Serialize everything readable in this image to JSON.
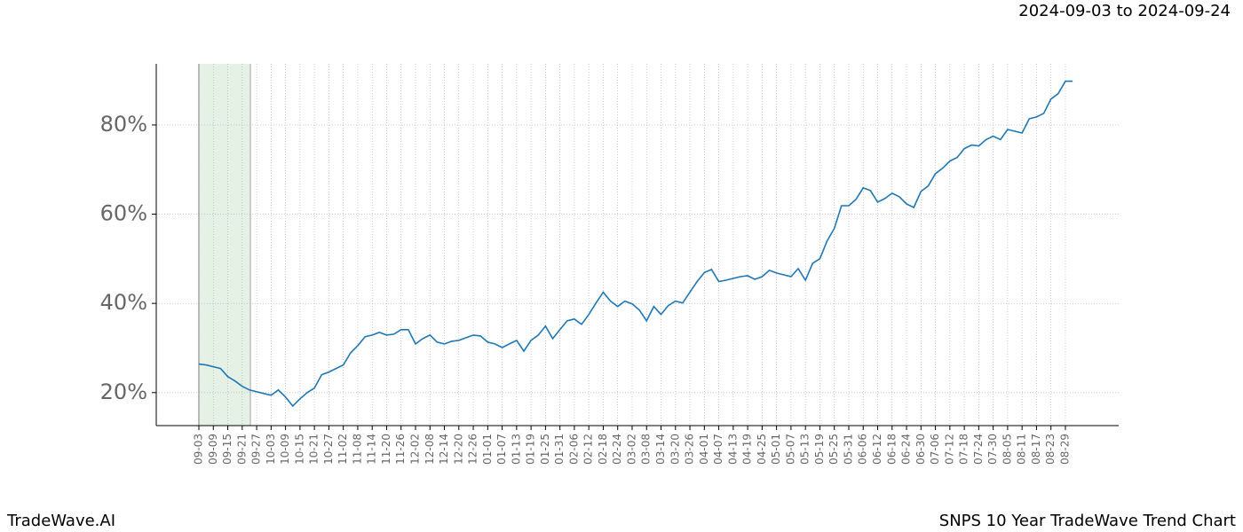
{
  "header": {
    "date_range": "2024-09-03 to 2024-09-24"
  },
  "footer": {
    "brand": "TradeWave.AI",
    "chart_title": "SNPS 10 Year TradeWave Trend Chart"
  },
  "chart_data": {
    "type": "line",
    "categories": [
      "09-03",
      null,
      "09-09",
      null,
      "09-15",
      null,
      "09-21",
      null,
      "09-27",
      null,
      "10-03",
      null,
      "10-09",
      null,
      "10-15",
      null,
      "10-21",
      null,
      "10-27",
      null,
      "11-02",
      null,
      "11-08",
      null,
      "11-14",
      null,
      "11-20",
      null,
      "11-26",
      null,
      "12-02",
      null,
      "12-08",
      null,
      "12-14",
      null,
      "12-20",
      null,
      "12-26",
      null,
      "01-01",
      null,
      "01-07",
      null,
      "01-13",
      null,
      "01-19",
      null,
      "01-25",
      null,
      "01-31",
      null,
      "02-06",
      null,
      "02-12",
      null,
      "02-18",
      null,
      "02-24",
      null,
      "03-02",
      null,
      "03-08",
      null,
      "03-14",
      null,
      "03-20",
      null,
      "03-26",
      null,
      "04-01",
      null,
      "04-07",
      null,
      "04-13",
      null,
      "04-19",
      null,
      "04-25",
      null,
      "05-01",
      null,
      "05-07",
      null,
      "05-13",
      null,
      "05-19",
      null,
      "05-25",
      null,
      "05-31",
      null,
      "06-06",
      null,
      "06-12",
      null,
      "06-18",
      null,
      "06-24",
      null,
      "06-30",
      null,
      "07-06",
      null,
      "07-12",
      null,
      "07-18",
      null,
      "07-24",
      null,
      "07-30",
      null,
      "08-05",
      null,
      "08-11",
      null,
      "08-17",
      null,
      "08-23",
      null,
      "08-29",
      null
    ],
    "series": [
      {
        "color": "#1f77b4",
        "values": [
          26.4,
          26.2,
          25.8,
          25.4,
          23.6,
          22.6,
          21.4,
          20.6,
          20.2,
          19.8,
          19.4,
          20.6,
          19.0,
          17.0,
          18.6,
          20,
          21,
          24,
          24.6,
          25.4,
          26.2,
          28.9,
          30.5,
          32.5,
          32.9,
          33.5,
          32.9,
          33.1,
          34.1,
          34.1,
          30.9,
          32.1,
          32.9,
          31.3,
          30.9,
          31.5,
          31.7,
          32.3,
          32.9,
          32.7,
          31.3,
          30.9,
          30.1,
          30.9,
          31.7,
          29.3,
          31.7,
          32.9,
          34.9,
          32.1,
          34.1,
          36.1,
          36.5,
          35.3,
          37.5,
          40.1,
          42.5,
          40.5,
          39.3,
          40.5,
          39.9,
          38.5,
          36.1,
          39.3,
          37.5,
          39.5,
          40.5,
          40.1,
          42.5,
          44.9,
          46.9,
          47.6,
          44.9,
          45.2,
          45.6,
          46.0,
          46.2,
          45.4,
          46.0,
          47.4,
          46.8,
          46.4,
          46.0,
          47.8,
          45.2,
          49.0,
          50.0,
          54.0,
          56.8,
          61.9,
          61.9,
          63.3,
          65.9,
          65.3,
          62.7,
          63.5,
          64.7,
          63.9,
          62.3,
          61.5,
          65.1,
          66.3,
          69.1,
          70.3,
          71.9,
          72.7,
          74.7,
          75.5,
          75.3,
          76.7,
          77.5,
          76.7,
          79.0,
          78.6,
          78.2,
          81.4,
          81.8,
          82.6,
          85.8,
          87.0,
          89.8,
          89.8
        ]
      }
    ],
    "ylim": [
      12.6,
      93.7
    ],
    "yticks": [
      {
        "value": 20,
        "label": "20%"
      },
      {
        "value": 40,
        "label": "40%"
      },
      {
        "value": 60,
        "label": "60%"
      },
      {
        "value": 80,
        "label": "80%"
      }
    ],
    "grid": true
  }
}
